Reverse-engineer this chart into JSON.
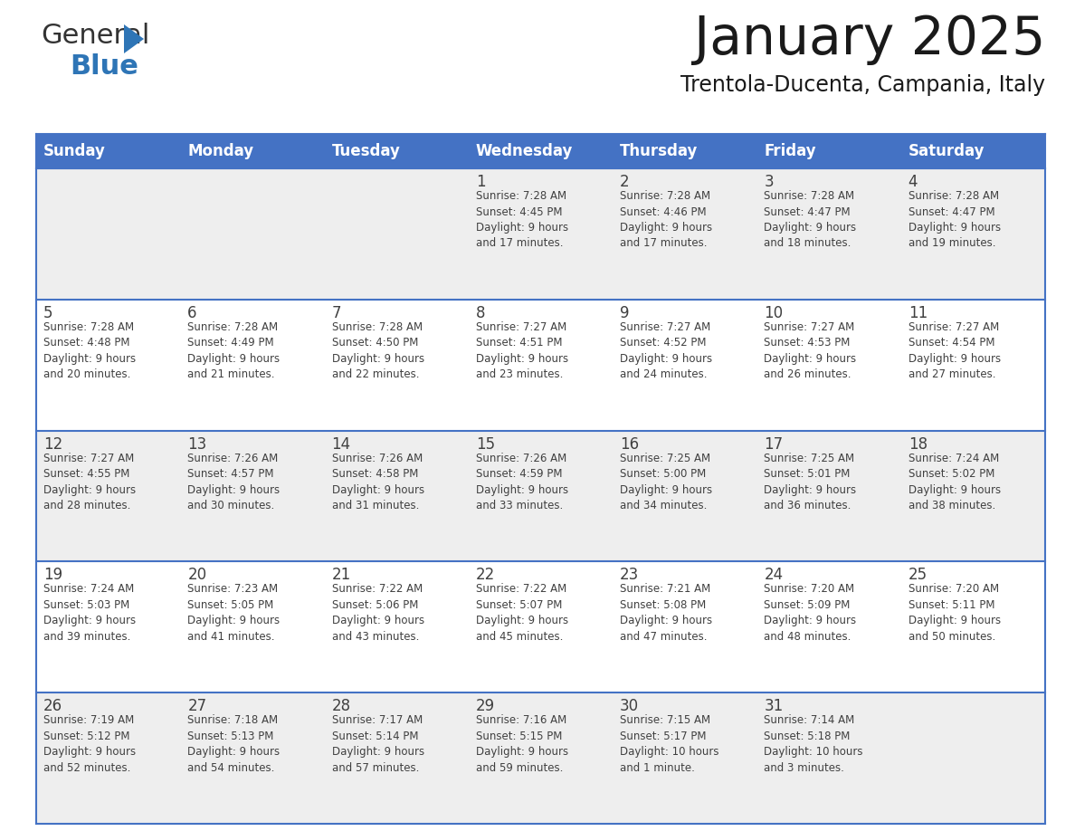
{
  "title": "January 2025",
  "subtitle": "Trentola-Ducenta, Campania, Italy",
  "days_of_week": [
    "Sunday",
    "Monday",
    "Tuesday",
    "Wednesday",
    "Thursday",
    "Friday",
    "Saturday"
  ],
  "header_bg": "#4472C4",
  "header_text": "#FFFFFF",
  "cell_bg_odd": "#EEEEEE",
  "cell_bg_even": "#FFFFFF",
  "border_color": "#4472C4",
  "text_color": "#404040",
  "title_color": "#1a1a1a",
  "subtitle_color": "#1a1a1a",
  "logo_general_color": "#333333",
  "logo_blue_color": "#2E75B6",
  "logo_triangle_color": "#2E75B6",
  "calendar": [
    [
      {
        "day": null,
        "sunrise": null,
        "sunset": null,
        "daylight": null
      },
      {
        "day": null,
        "sunrise": null,
        "sunset": null,
        "daylight": null
      },
      {
        "day": null,
        "sunrise": null,
        "sunset": null,
        "daylight": null
      },
      {
        "day": 1,
        "sunrise": "7:28 AM",
        "sunset": "4:45 PM",
        "daylight": "9 hours\nand 17 minutes."
      },
      {
        "day": 2,
        "sunrise": "7:28 AM",
        "sunset": "4:46 PM",
        "daylight": "9 hours\nand 17 minutes."
      },
      {
        "day": 3,
        "sunrise": "7:28 AM",
        "sunset": "4:47 PM",
        "daylight": "9 hours\nand 18 minutes."
      },
      {
        "day": 4,
        "sunrise": "7:28 AM",
        "sunset": "4:47 PM",
        "daylight": "9 hours\nand 19 minutes."
      }
    ],
    [
      {
        "day": 5,
        "sunrise": "7:28 AM",
        "sunset": "4:48 PM",
        "daylight": "9 hours\nand 20 minutes."
      },
      {
        "day": 6,
        "sunrise": "7:28 AM",
        "sunset": "4:49 PM",
        "daylight": "9 hours\nand 21 minutes."
      },
      {
        "day": 7,
        "sunrise": "7:28 AM",
        "sunset": "4:50 PM",
        "daylight": "9 hours\nand 22 minutes."
      },
      {
        "day": 8,
        "sunrise": "7:27 AM",
        "sunset": "4:51 PM",
        "daylight": "9 hours\nand 23 minutes."
      },
      {
        "day": 9,
        "sunrise": "7:27 AM",
        "sunset": "4:52 PM",
        "daylight": "9 hours\nand 24 minutes."
      },
      {
        "day": 10,
        "sunrise": "7:27 AM",
        "sunset": "4:53 PM",
        "daylight": "9 hours\nand 26 minutes."
      },
      {
        "day": 11,
        "sunrise": "7:27 AM",
        "sunset": "4:54 PM",
        "daylight": "9 hours\nand 27 minutes."
      }
    ],
    [
      {
        "day": 12,
        "sunrise": "7:27 AM",
        "sunset": "4:55 PM",
        "daylight": "9 hours\nand 28 minutes."
      },
      {
        "day": 13,
        "sunrise": "7:26 AM",
        "sunset": "4:57 PM",
        "daylight": "9 hours\nand 30 minutes."
      },
      {
        "day": 14,
        "sunrise": "7:26 AM",
        "sunset": "4:58 PM",
        "daylight": "9 hours\nand 31 minutes."
      },
      {
        "day": 15,
        "sunrise": "7:26 AM",
        "sunset": "4:59 PM",
        "daylight": "9 hours\nand 33 minutes."
      },
      {
        "day": 16,
        "sunrise": "7:25 AM",
        "sunset": "5:00 PM",
        "daylight": "9 hours\nand 34 minutes."
      },
      {
        "day": 17,
        "sunrise": "7:25 AM",
        "sunset": "5:01 PM",
        "daylight": "9 hours\nand 36 minutes."
      },
      {
        "day": 18,
        "sunrise": "7:24 AM",
        "sunset": "5:02 PM",
        "daylight": "9 hours\nand 38 minutes."
      }
    ],
    [
      {
        "day": 19,
        "sunrise": "7:24 AM",
        "sunset": "5:03 PM",
        "daylight": "9 hours\nand 39 minutes."
      },
      {
        "day": 20,
        "sunrise": "7:23 AM",
        "sunset": "5:05 PM",
        "daylight": "9 hours\nand 41 minutes."
      },
      {
        "day": 21,
        "sunrise": "7:22 AM",
        "sunset": "5:06 PM",
        "daylight": "9 hours\nand 43 minutes."
      },
      {
        "day": 22,
        "sunrise": "7:22 AM",
        "sunset": "5:07 PM",
        "daylight": "9 hours\nand 45 minutes."
      },
      {
        "day": 23,
        "sunrise": "7:21 AM",
        "sunset": "5:08 PM",
        "daylight": "9 hours\nand 47 minutes."
      },
      {
        "day": 24,
        "sunrise": "7:20 AM",
        "sunset": "5:09 PM",
        "daylight": "9 hours\nand 48 minutes."
      },
      {
        "day": 25,
        "sunrise": "7:20 AM",
        "sunset": "5:11 PM",
        "daylight": "9 hours\nand 50 minutes."
      }
    ],
    [
      {
        "day": 26,
        "sunrise": "7:19 AM",
        "sunset": "5:12 PM",
        "daylight": "9 hours\nand 52 minutes."
      },
      {
        "day": 27,
        "sunrise": "7:18 AM",
        "sunset": "5:13 PM",
        "daylight": "9 hours\nand 54 minutes."
      },
      {
        "day": 28,
        "sunrise": "7:17 AM",
        "sunset": "5:14 PM",
        "daylight": "9 hours\nand 57 minutes."
      },
      {
        "day": 29,
        "sunrise": "7:16 AM",
        "sunset": "5:15 PM",
        "daylight": "9 hours\nand 59 minutes."
      },
      {
        "day": 30,
        "sunrise": "7:15 AM",
        "sunset": "5:17 PM",
        "daylight": "10 hours\nand 1 minute."
      },
      {
        "day": 31,
        "sunrise": "7:14 AM",
        "sunset": "5:18 PM",
        "daylight": "10 hours\nand 3 minutes."
      },
      {
        "day": null,
        "sunrise": null,
        "sunset": null,
        "daylight": null
      }
    ]
  ]
}
